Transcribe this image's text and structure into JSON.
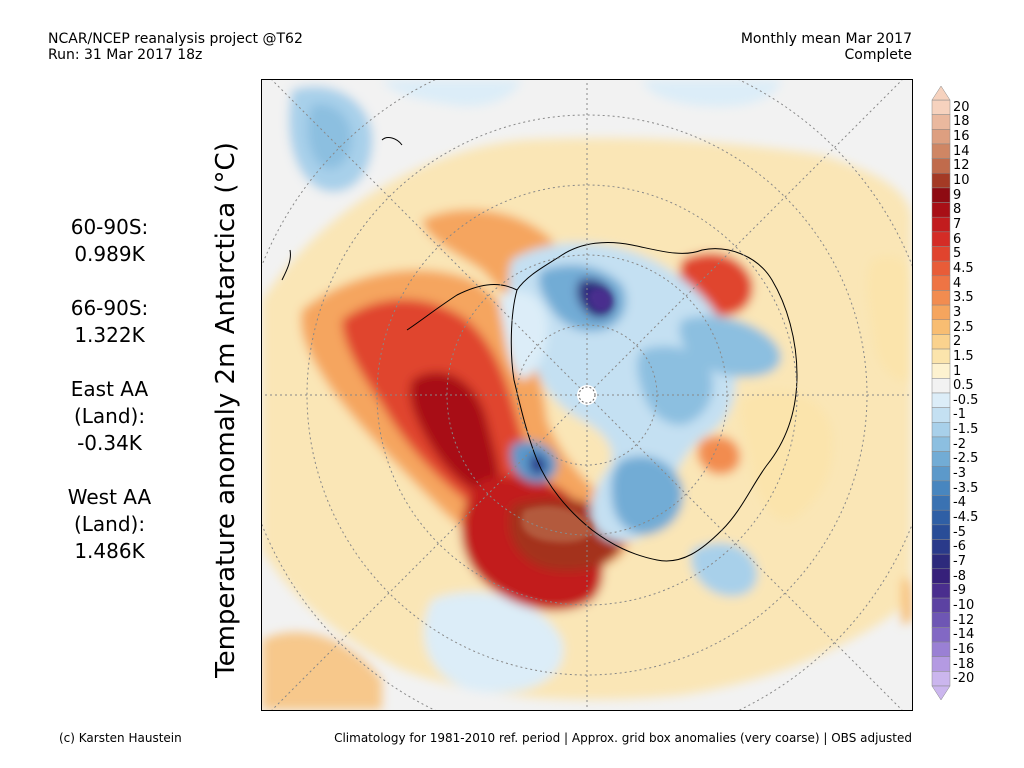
{
  "header": {
    "left_line1": "NCAR/NCEP reanalysis project @T62",
    "left_line2": "Run: 31 Mar 2017 18z",
    "right_line1": "Monthly mean Mar 2017",
    "right_line2": "Complete"
  },
  "map_title": "Temperature anomaly 2m Antarctica (°C)",
  "stats": [
    {
      "region": "60-90S:",
      "value": "0.989K"
    },
    {
      "region": "66-90S:",
      "value": "1.322K"
    },
    {
      "region_line1": "East AA",
      "region_line2": "(Land):",
      "value": "-0.34K"
    },
    {
      "region_line1": "West AA",
      "region_line2": "(Land):",
      "value": "1.486K"
    }
  ],
  "colorbar": {
    "labels": [
      "20",
      "18",
      "16",
      "14",
      "12",
      "10",
      "9",
      "8",
      "7",
      "6",
      "5",
      "4.5",
      "4",
      "3.5",
      "3",
      "2.5",
      "2",
      "1.5",
      "1",
      "0.5",
      "-0.5",
      "-1",
      "-1.5",
      "-2",
      "-2.5",
      "-3",
      "-3.5",
      "-4",
      "-4.5",
      "-5",
      "-6",
      "-7",
      "-8",
      "-9",
      "-10",
      "-12",
      "-14",
      "-16",
      "-18",
      "-20"
    ],
    "colors": [
      "#f6d2be",
      "#eab89e",
      "#dd9f80",
      "#cf8664",
      "#c06b4c",
      "#a43a25",
      "#8e0b12",
      "#a80f16",
      "#c21c1e",
      "#d42c26",
      "#e0442e",
      "#e85c38",
      "#ee7444",
      "#f28c50",
      "#f5a55e",
      "#f8bd72",
      "#fad28e",
      "#fbe4ac",
      "#fdf2d0",
      "#f2f2f2",
      "#dcedf8",
      "#c4e0f2",
      "#a8d0ea",
      "#8cbfe0",
      "#72acd5",
      "#5c99ca",
      "#4886bf",
      "#3a72b2",
      "#2f5fa5",
      "#294d97",
      "#2a3a8a",
      "#2d2a7c",
      "#36207a",
      "#4a2e8e",
      "#5c42a2",
      "#6e56b4",
      "#8268c4",
      "#9a80d4",
      "#b49ae2",
      "#cbb6ee"
    ]
  },
  "footer": {
    "left": "(c) Karsten Haustein",
    "right": "Climatology for 1981-2010 ref. period | Approx. grid box anomalies (very coarse) | OBS adjusted"
  }
}
